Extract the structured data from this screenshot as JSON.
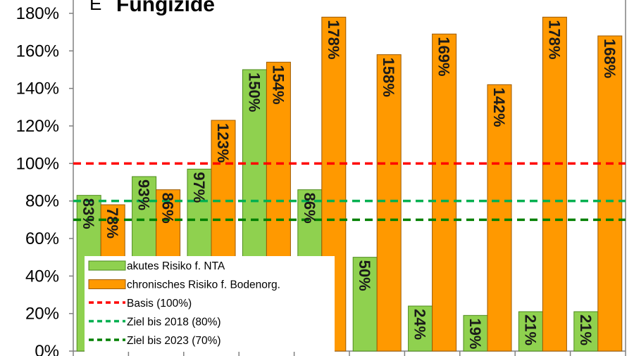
{
  "title": {
    "prefix": "E",
    "text": "Fungizide"
  },
  "colors": {
    "acute": "#8fd14f",
    "acute_stroke": "#4e8a1e",
    "chronic": "#ff9900",
    "chronic_stroke": "#9c5a00",
    "basis": "#ff0000",
    "ziel2018": "#00b050",
    "ziel2023": "#008000"
  },
  "chart_data": {
    "type": "bar",
    "categories": [
      "",
      "",
      "",
      "",
      "",
      "",
      "",
      "",
      "",
      ""
    ],
    "series": [
      {
        "name": "akutes Risiko f. NTA",
        "values": [
          83,
          93,
          97,
          150,
          86,
          50,
          24,
          19,
          21,
          21
        ],
        "labels": [
          "83%",
          "93%",
          "97%",
          "150%",
          "86%",
          "50%",
          "24%",
          "19%",
          "21%",
          "21%"
        ]
      },
      {
        "name": "chronisches Risiko f. Bodenorg.",
        "values": [
          78,
          86,
          123,
          154,
          178,
          158,
          169,
          142,
          178,
          168
        ],
        "labels": [
          "78%",
          "86%",
          "123%",
          "154%",
          "178%",
          "158%",
          "169%",
          "142%",
          "178%",
          "168%"
        ]
      }
    ],
    "reference_lines": [
      {
        "name": "Basis (100%)",
        "value": 100,
        "color": "#ff0000"
      },
      {
        "name": "Ziel bis 2018 (80%)",
        "value": 80,
        "color": "#00b050"
      },
      {
        "name": "Ziel bis 2023 (70%)",
        "value": 70,
        "color": "#008000"
      }
    ],
    "ylim": [
      0,
      180
    ],
    "yticks": [
      0,
      20,
      40,
      60,
      80,
      100,
      120,
      140,
      160,
      180
    ],
    "ytick_labels": [
      "0%",
      "20%",
      "40%",
      "60%",
      "80%",
      "100%",
      "120%",
      "140%",
      "160%",
      "180%"
    ],
    "xlabel": "",
    "ylabel": "",
    "legend_position": "bottom-left",
    "grid": false
  }
}
